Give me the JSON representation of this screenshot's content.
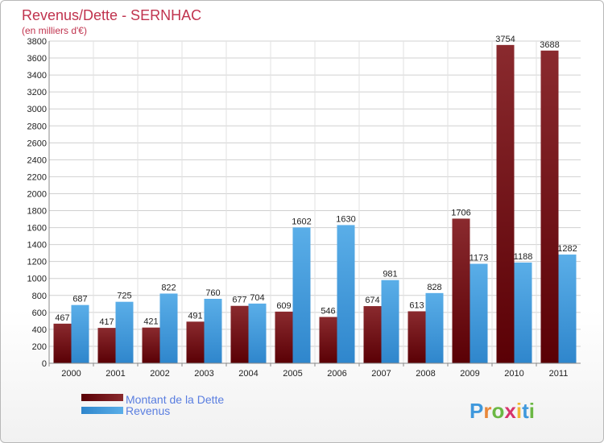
{
  "chart_data": {
    "type": "bar",
    "title": "Revenus/Dette - SERNHAC",
    "subtitle": "(en milliers d'€)",
    "categories": [
      "2000",
      "2001",
      "2002",
      "2003",
      "2004",
      "2005",
      "2006",
      "2007",
      "2008",
      "2009",
      "2010",
      "2011"
    ],
    "series": [
      {
        "name": "Montant de la Dette",
        "color": "#6e0f12",
        "values": [
          467,
          417,
          421,
          491,
          677,
          609,
          546,
          674,
          613,
          1706,
          3754,
          3688
        ]
      },
      {
        "name": "Revenus",
        "color": "#3f98dc",
        "values": [
          687,
          725,
          822,
          760,
          704,
          1602,
          1630,
          981,
          828,
          1173,
          1188,
          1282
        ]
      }
    ],
    "ylim": [
      0,
      3800
    ],
    "yticks": [
      0,
      200,
      400,
      600,
      800,
      1000,
      1200,
      1400,
      1600,
      1800,
      2000,
      2200,
      2400,
      2600,
      2800,
      3000,
      3200,
      3400,
      3600,
      3800
    ],
    "grid": true,
    "legend": "bottom-left"
  },
  "brand": {
    "logo_text": "Proxiti"
  }
}
